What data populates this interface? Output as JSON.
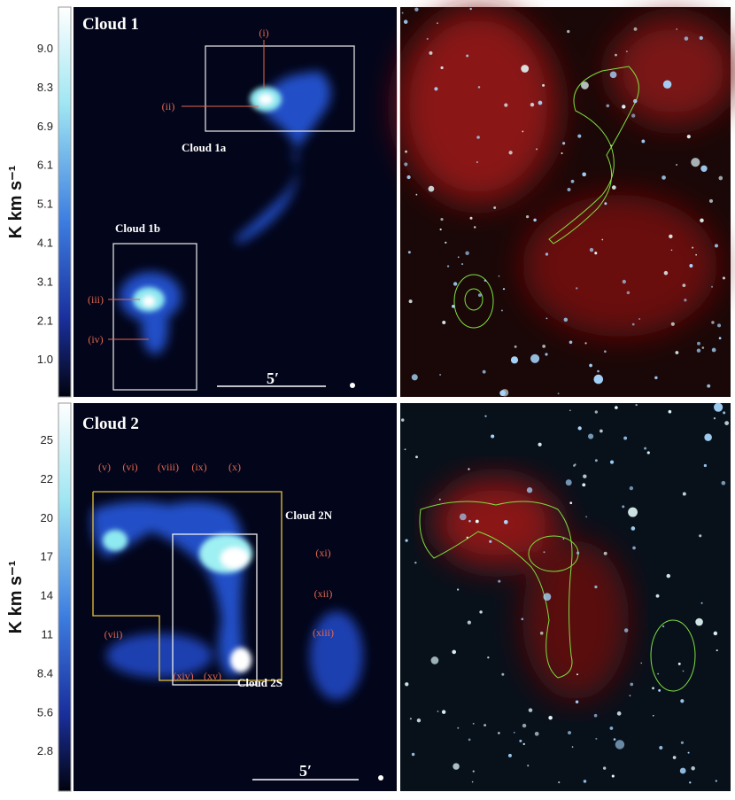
{
  "panels": [
    {
      "title": "Cloud 1",
      "colorbar": {
        "label": "K km s⁻¹",
        "ticks": [
          "9.0",
          "8.3",
          "6.9",
          "6.1",
          "5.1",
          "4.1",
          "3.1",
          "2.1",
          "1.0"
        ]
      },
      "annotations": [
        "(i)",
        "(ii)",
        "Cloud 1a",
        "Cloud 1b",
        "(iii)",
        "(iv)"
      ],
      "scale_bar": "5′"
    },
    {
      "title": "Cloud 2",
      "colorbar": {
        "label": "K km s⁻¹",
        "ticks": [
          "25",
          "22",
          "20",
          "17",
          "14",
          "11",
          "8.4",
          "5.6",
          "2.8"
        ]
      },
      "annotations": [
        "(v)",
        "(vi)",
        "(viii)",
        "(ix)",
        "(x)",
        "Cloud 2N",
        "(xi)",
        "(xii)",
        "(vii)",
        "(xiii)",
        "(xiv)",
        "(xv)",
        "Cloud 2S"
      ],
      "scale_bar": "5′"
    }
  ]
}
